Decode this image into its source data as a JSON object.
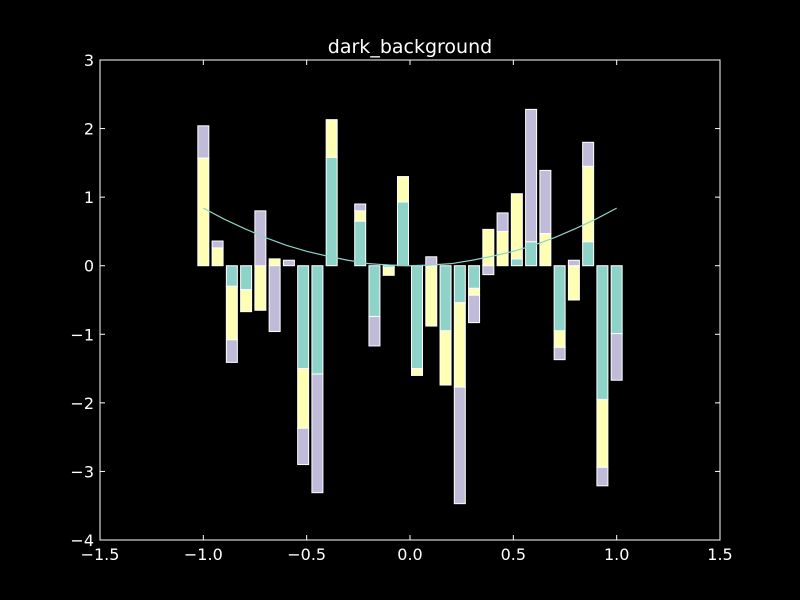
{
  "chart_data": {
    "type": "bar",
    "title": "dark_background",
    "xlabel": "",
    "ylabel": "",
    "xlim": [
      -1.5,
      1.5
    ],
    "ylim": [
      -4,
      3
    ],
    "xticks": [
      -1.5,
      -1.0,
      -0.5,
      0.0,
      0.5,
      1.0,
      1.5
    ],
    "xtick_labels": [
      "−1.5",
      "−1.0",
      "−0.5",
      "0.0",
      "0.5",
      "1.0",
      "1.5"
    ],
    "yticks": [
      -4,
      -3,
      -2,
      -1,
      0,
      1,
      2,
      3
    ],
    "ytick_labels": [
      "−4",
      "−3",
      "−2",
      "−1",
      "0",
      "1",
      "2",
      "3"
    ],
    "grid": false,
    "background": "#000000",
    "foreground": "#ffffff",
    "x": [
      -1.0,
      -0.931,
      -0.862,
      -0.793,
      -0.724,
      -0.655,
      -0.586,
      -0.517,
      -0.448,
      -0.379,
      -0.31,
      -0.241,
      -0.172,
      -0.103,
      -0.034,
      0.034,
      0.103,
      0.172,
      0.241,
      0.31,
      0.379,
      0.448,
      0.517,
      0.586,
      0.655,
      0.724,
      0.793,
      0.862,
      0.931,
      1.0
    ],
    "series": [
      {
        "color": "#8dd3c7",
        "values": [
          0.0,
          0.0,
          -0.3,
          -0.35,
          0.0,
          0.0,
          0.0,
          -1.5,
          -1.58,
          1.58,
          0.0,
          0.65,
          -0.74,
          -0.03,
          0.93,
          -1.5,
          0.0,
          -0.95,
          -0.54,
          -0.33,
          0.0,
          0.0,
          0.1,
          0.35,
          0.0,
          -0.95,
          0.0,
          0.35,
          -1.95,
          -0.99
        ]
      },
      {
        "color": "#feffb3",
        "values": [
          1.57,
          0.26,
          -0.78,
          -0.32,
          -0.65,
          0.1,
          0.0,
          -0.87,
          0.0,
          0.55,
          0.0,
          0.15,
          0.0,
          -0.11,
          0.37,
          -0.1,
          -0.88,
          -0.79,
          -1.23,
          -0.1,
          0.53,
          0.5,
          0.95,
          0.0,
          0.47,
          -0.24,
          -0.5,
          1.1,
          -0.99,
          0.0
        ]
      },
      {
        "color": "#bfbbd9",
        "values": [
          0.47,
          0.1,
          -0.33,
          0.0,
          0.8,
          -0.96,
          0.08,
          -0.53,
          -1.73,
          0.0,
          0.0,
          0.1,
          -0.43,
          0.0,
          0.0,
          0.0,
          0.13,
          0.0,
          -1.7,
          -0.4,
          -0.13,
          0.27,
          0.0,
          1.93,
          0.92,
          -0.18,
          0.08,
          0.35,
          -0.27,
          -0.68
        ]
      }
    ],
    "curve": {
      "color": "#8dd3c7",
      "x": [
        -1.0,
        -0.9,
        -0.8,
        -0.7,
        -0.6,
        -0.5,
        -0.4,
        -0.3,
        -0.2,
        -0.1,
        0.0,
        0.1,
        0.2,
        0.3,
        0.4,
        0.5,
        0.6,
        0.7,
        0.8,
        0.9,
        1.0
      ],
      "y": [
        0.84,
        0.68,
        0.54,
        0.41,
        0.3,
        0.21,
        0.14,
        0.08,
        0.03,
        0.01,
        0.0,
        0.01,
        0.03,
        0.08,
        0.14,
        0.21,
        0.3,
        0.41,
        0.54,
        0.68,
        0.84
      ]
    }
  }
}
